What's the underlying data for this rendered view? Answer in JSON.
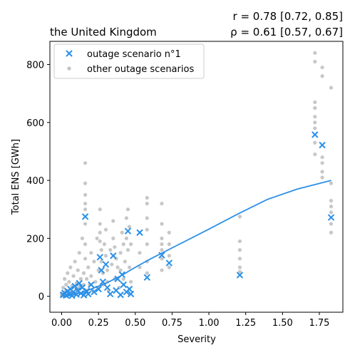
{
  "chart_data": {
    "type": "scatter",
    "title_left": "the United Kingdom",
    "title_right_line1": "r = 0.78 [0.72, 0.85]",
    "title_right_line2": "ρ = 0.61 [0.57, 0.67]",
    "xlabel": "Severity",
    "ylabel": "Total ENS [GWh]",
    "xlim": [
      -0.08,
      1.91
    ],
    "ylim": [
      -55,
      880
    ],
    "xticks": [
      "0.00",
      "0.25",
      "0.50",
      "0.75",
      "1.00",
      "1.25",
      "1.50",
      "1.75"
    ],
    "xtick_values": [
      0,
      0.25,
      0.5,
      0.75,
      1.0,
      1.25,
      1.5,
      1.75
    ],
    "yticks": [
      "0",
      "200",
      "400",
      "600",
      "800"
    ],
    "ytick_values": [
      0,
      200,
      400,
      600,
      800
    ],
    "grid": false,
    "legend": {
      "position": "top-left",
      "entries": [
        "outage scenario n°1",
        "other outage scenarios"
      ]
    },
    "colors": {
      "scenario1": "#2b90e8",
      "others": "#999999",
      "fit": "#2b90e8"
    },
    "series": [
      {
        "name": "outage scenario n°1",
        "marker": "x",
        "points": [
          [
            0.01,
            5
          ],
          [
            0.02,
            12
          ],
          [
            0.03,
            3
          ],
          [
            0.04,
            18
          ],
          [
            0.05,
            8
          ],
          [
            0.06,
            25
          ],
          [
            0.07,
            2
          ],
          [
            0.08,
            15
          ],
          [
            0.09,
            35
          ],
          [
            0.1,
            6
          ],
          [
            0.11,
            20
          ],
          [
            0.12,
            45
          ],
          [
            0.13,
            10
          ],
          [
            0.14,
            30
          ],
          [
            0.15,
            4
          ],
          [
            0.16,
            275
          ],
          [
            0.17,
            18
          ],
          [
            0.18,
            8
          ],
          [
            0.2,
            40
          ],
          [
            0.22,
            15
          ],
          [
            0.25,
            25
          ],
          [
            0.26,
            135
          ],
          [
            0.27,
            90
          ],
          [
            0.28,
            50
          ],
          [
            0.3,
            110
          ],
          [
            0.31,
            30
          ],
          [
            0.33,
            8
          ],
          [
            0.35,
            140
          ],
          [
            0.37,
            20
          ],
          [
            0.38,
            60
          ],
          [
            0.4,
            5
          ],
          [
            0.41,
            75
          ],
          [
            0.42,
            40
          ],
          [
            0.44,
            15
          ],
          [
            0.45,
            225
          ],
          [
            0.46,
            25
          ],
          [
            0.47,
            8
          ],
          [
            0.53,
            220
          ],
          [
            0.58,
            65
          ],
          [
            0.68,
            142
          ],
          [
            0.73,
            115
          ],
          [
            1.21,
            73
          ],
          [
            1.72,
            558
          ],
          [
            1.77,
            522
          ],
          [
            1.83,
            272
          ]
        ]
      },
      {
        "name": "other outage scenarios",
        "marker": "dot",
        "points": [
          [
            0.0,
            2
          ],
          [
            0.0,
            10
          ],
          [
            0.01,
            30
          ],
          [
            0.02,
            60
          ],
          [
            0.02,
            5
          ],
          [
            0.03,
            40
          ],
          [
            0.03,
            20
          ],
          [
            0.04,
            80
          ],
          [
            0.05,
            15
          ],
          [
            0.05,
            50
          ],
          [
            0.06,
            100
          ],
          [
            0.07,
            35
          ],
          [
            0.07,
            10
          ],
          [
            0.08,
            70
          ],
          [
            0.09,
            5
          ],
          [
            0.09,
            120
          ],
          [
            0.1,
            45
          ],
          [
            0.1,
            25
          ],
          [
            0.11,
            90
          ],
          [
            0.12,
            150
          ],
          [
            0.12,
            30
          ],
          [
            0.13,
            60
          ],
          [
            0.14,
            10
          ],
          [
            0.14,
            200
          ],
          [
            0.15,
            80
          ],
          [
            0.15,
            40
          ],
          [
            0.16,
            460
          ],
          [
            0.16,
            390
          ],
          [
            0.16,
            350
          ],
          [
            0.16,
            320
          ],
          [
            0.16,
            300
          ],
          [
            0.16,
            250
          ],
          [
            0.16,
            180
          ],
          [
            0.16,
            130
          ],
          [
            0.17,
            60
          ],
          [
            0.17,
            20
          ],
          [
            0.18,
            100
          ],
          [
            0.19,
            40
          ],
          [
            0.2,
            150
          ],
          [
            0.2,
            70
          ],
          [
            0.21,
            20
          ],
          [
            0.22,
            120
          ],
          [
            0.23,
            50
          ],
          [
            0.24,
            200
          ],
          [
            0.25,
            90
          ],
          [
            0.25,
            30
          ],
          [
            0.26,
            300
          ],
          [
            0.26,
            250
          ],
          [
            0.26,
            220
          ],
          [
            0.26,
            190
          ],
          [
            0.27,
            160
          ],
          [
            0.27,
            120
          ],
          [
            0.28,
            80
          ],
          [
            0.28,
            40
          ],
          [
            0.29,
            180
          ],
          [
            0.3,
            230
          ],
          [
            0.3,
            140
          ],
          [
            0.31,
            90
          ],
          [
            0.31,
            50
          ],
          [
            0.32,
            20
          ],
          [
            0.33,
            160
          ],
          [
            0.34,
            110
          ],
          [
            0.35,
            260
          ],
          [
            0.35,
            200
          ],
          [
            0.36,
            170
          ],
          [
            0.36,
            60
          ],
          [
            0.37,
            130
          ],
          [
            0.38,
            100
          ],
          [
            0.39,
            30
          ],
          [
            0.4,
            150
          ],
          [
            0.4,
            90
          ],
          [
            0.41,
            220
          ],
          [
            0.42,
            180
          ],
          [
            0.42,
            60
          ],
          [
            0.43,
            120
          ],
          [
            0.44,
            270
          ],
          [
            0.44,
            200
          ],
          [
            0.45,
            300
          ],
          [
            0.45,
            160
          ],
          [
            0.46,
            240
          ],
          [
            0.46,
            100
          ],
          [
            0.47,
            50
          ],
          [
            0.47,
            180
          ],
          [
            0.53,
            150
          ],
          [
            0.53,
            100
          ],
          [
            0.58,
            340
          ],
          [
            0.58,
            320
          ],
          [
            0.58,
            270
          ],
          [
            0.58,
            230
          ],
          [
            0.58,
            180
          ],
          [
            0.58,
            120
          ],
          [
            0.58,
            80
          ],
          [
            0.68,
            320
          ],
          [
            0.68,
            250
          ],
          [
            0.68,
            200
          ],
          [
            0.68,
            180
          ],
          [
            0.68,
            160
          ],
          [
            0.68,
            130
          ],
          [
            0.68,
            90
          ],
          [
            0.73,
            220
          ],
          [
            0.73,
            180
          ],
          [
            0.73,
            140
          ],
          [
            0.73,
            100
          ],
          [
            1.21,
            275
          ],
          [
            1.21,
            190
          ],
          [
            1.21,
            160
          ],
          [
            1.21,
            130
          ],
          [
            1.21,
            100
          ],
          [
            1.21,
            85
          ],
          [
            1.72,
            840
          ],
          [
            1.72,
            810
          ],
          [
            1.72,
            670
          ],
          [
            1.72,
            650
          ],
          [
            1.72,
            620
          ],
          [
            1.72,
            600
          ],
          [
            1.72,
            580
          ],
          [
            1.72,
            530
          ],
          [
            1.72,
            490
          ],
          [
            1.77,
            790
          ],
          [
            1.77,
            760
          ],
          [
            1.77,
            480
          ],
          [
            1.77,
            460
          ],
          [
            1.77,
            430
          ],
          [
            1.77,
            410
          ],
          [
            1.83,
            720
          ],
          [
            1.83,
            390
          ],
          [
            1.83,
            330
          ],
          [
            1.83,
            310
          ],
          [
            1.83,
            290
          ],
          [
            1.83,
            250
          ],
          [
            1.83,
            220
          ]
        ]
      },
      {
        "name": "",
        "marker": "line",
        "points": [
          [
            0.0,
            0
          ],
          [
            0.05,
            2
          ],
          [
            0.1,
            8
          ],
          [
            0.15,
            15
          ],
          [
            0.2,
            25
          ],
          [
            0.3,
            45
          ],
          [
            0.4,
            70
          ],
          [
            0.5,
            100
          ],
          [
            0.6,
            128
          ],
          [
            0.8,
            180
          ],
          [
            1.0,
            232
          ],
          [
            1.2,
            285
          ],
          [
            1.4,
            335
          ],
          [
            1.6,
            370
          ],
          [
            1.83,
            400
          ]
        ]
      }
    ]
  }
}
